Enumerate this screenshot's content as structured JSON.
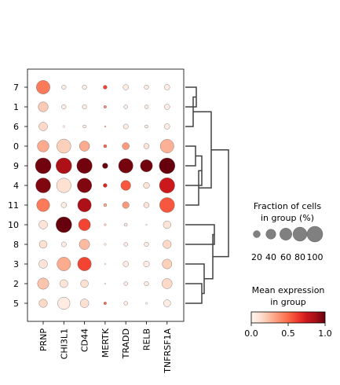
{
  "chart_data": {
    "type": "scatter",
    "subtype": "dotplot",
    "rows": [
      "7",
      "1",
      "6",
      "0",
      "9",
      "4",
      "11",
      "10",
      "8",
      "3",
      "2",
      "5"
    ],
    "columns": [
      "PRNP",
      "CHI3L1",
      "CD44",
      "MERTK",
      "TRADD",
      "RELB",
      "TNFRSF1A"
    ],
    "fraction_percent": [
      [
        75,
        8,
        8,
        6,
        12,
        8,
        12
      ],
      [
        40,
        8,
        8,
        3,
        6,
        6,
        12
      ],
      [
        30,
        2,
        4,
        1,
        10,
        4,
        12
      ],
      [
        55,
        80,
        42,
        4,
        20,
        12,
        75
      ],
      [
        100,
        100,
        95,
        12,
        85,
        60,
        100
      ],
      [
        90,
        85,
        85,
        6,
        40,
        15,
        95
      ],
      [
        68,
        12,
        75,
        4,
        18,
        12,
        90
      ],
      [
        30,
        100,
        58,
        2,
        4,
        1,
        24
      ],
      [
        25,
        10,
        44,
        2,
        6,
        8,
        28
      ],
      [
        30,
        75,
        75,
        1,
        12,
        14,
        38
      ],
      [
        52,
        26,
        24,
        1,
        6,
        8,
        42
      ],
      [
        28,
        62,
        30,
        3,
        6,
        2,
        20
      ]
    ],
    "mean_expression": [
      [
        0.45,
        0.05,
        0.05,
        0.6,
        0.05,
        0.05,
        0.05
      ],
      [
        0.2,
        0.05,
        0.05,
        0.4,
        0.05,
        0.05,
        0.05
      ],
      [
        0.15,
        0.05,
        0.05,
        0.3,
        0.05,
        0.05,
        0.05
      ],
      [
        0.3,
        0.18,
        0.3,
        0.5,
        0.35,
        0.1,
        0.28
      ],
      [
        0.98,
        0.85,
        0.98,
        1.0,
        0.97,
        0.98,
        1.0
      ],
      [
        0.95,
        0.12,
        0.95,
        0.7,
        0.55,
        0.1,
        0.75
      ],
      [
        0.45,
        0.05,
        0.85,
        0.3,
        0.35,
        0.1,
        0.55
      ],
      [
        0.1,
        1.0,
        0.6,
        0.2,
        0.05,
        0.05,
        0.1
      ],
      [
        0.12,
        0.05,
        0.25,
        0.1,
        0.05,
        0.05,
        0.15
      ],
      [
        0.1,
        0.3,
        0.6,
        0.05,
        0.05,
        0.05,
        0.18
      ],
      [
        0.22,
        0.1,
        0.12,
        0.05,
        0.05,
        0.05,
        0.15
      ],
      [
        0.15,
        0.06,
        0.12,
        0.5,
        0.05,
        0.05,
        0.05
      ]
    ],
    "size_legend": {
      "title_line1": "Fraction of cells",
      "title_line2": "in group (%)",
      "values": [
        20,
        40,
        60,
        80,
        100
      ],
      "labels": [
        "20",
        "40",
        "60",
        "80",
        "100"
      ]
    },
    "color_legend": {
      "title_line1": "Mean expression",
      "title_line2": "in group",
      "range": [
        0,
        1
      ],
      "ticks": [
        "0.0",
        "0.5",
        "1.0"
      ],
      "colormap": "Reds"
    },
    "dendrogram": {
      "merges": [
        [
          "7",
          "1"
        ],
        [
          "(7,1)",
          "6"
        ],
        [
          "0",
          "9"
        ],
        [
          "(0,9)",
          "4"
        ],
        [
          "(0,9,4)",
          "11"
        ],
        [
          "(7,1,6)",
          "(0,9,4,11)"
        ],
        [
          "10",
          "8"
        ],
        [
          "2",
          "5"
        ],
        [
          "3",
          "(2,5)"
        ],
        [
          "(10,8)",
          "(3,2,5)"
        ],
        [
          "all_top",
          "all_bottom"
        ]
      ]
    },
    "grid": false,
    "legend_position": "right"
  }
}
